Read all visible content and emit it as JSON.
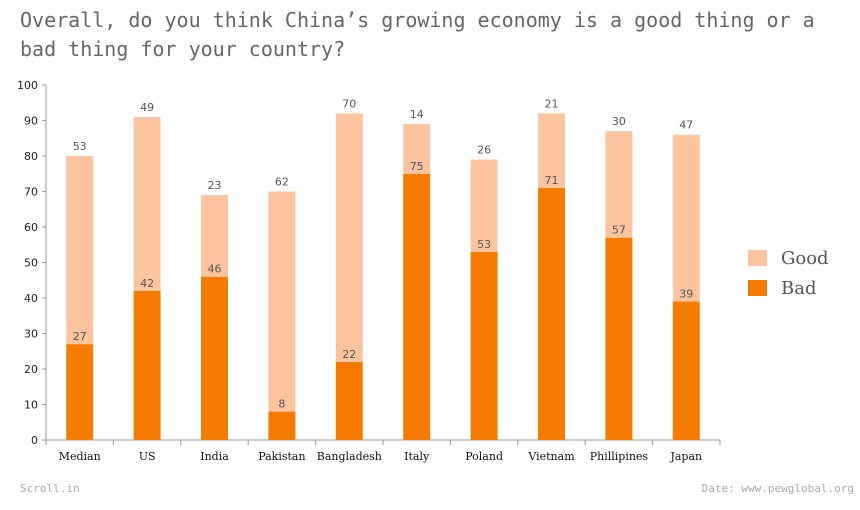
{
  "chart_data": {
    "type": "bar",
    "stacked": true,
    "title": "Overall, do you think China’s growing economy is a good thing or a bad thing for your country?",
    "categories": [
      "Median",
      "US",
      "India",
      "Pakistan",
      "Bangladesh",
      "Italy",
      "Poland",
      "Vietnam",
      "Phillipines",
      "Japan"
    ],
    "series": [
      {
        "name": "Bad",
        "color": "#f57c00",
        "values": [
          27,
          42,
          46,
          8,
          22,
          75,
          53,
          71,
          57,
          39
        ]
      },
      {
        "name": "Good",
        "color": "#fdc4a0",
        "values": [
          53,
          49,
          23,
          62,
          70,
          14,
          26,
          21,
          30,
          47
        ]
      }
    ],
    "ylim": [
      0,
      100
    ],
    "yticks": [
      0,
      10,
      20,
      30,
      40,
      50,
      60,
      70,
      80,
      90,
      100
    ],
    "xlabel": "",
    "ylabel": "",
    "grid": false,
    "legend": {
      "placement": "right",
      "order": [
        "Good",
        "Bad"
      ]
    }
  },
  "footer": {
    "left": "Scroll.in",
    "right": "Date: www.pewglobal.org"
  }
}
